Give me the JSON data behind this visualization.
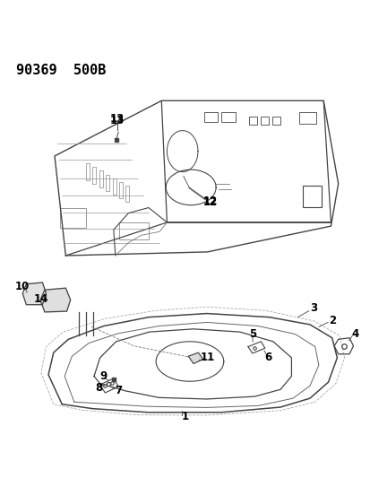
{
  "title": "90369  500B",
  "bg_color": "#ffffff",
  "line_color": "#444444",
  "title_fontsize": 11,
  "label_fontsize": 8.5
}
